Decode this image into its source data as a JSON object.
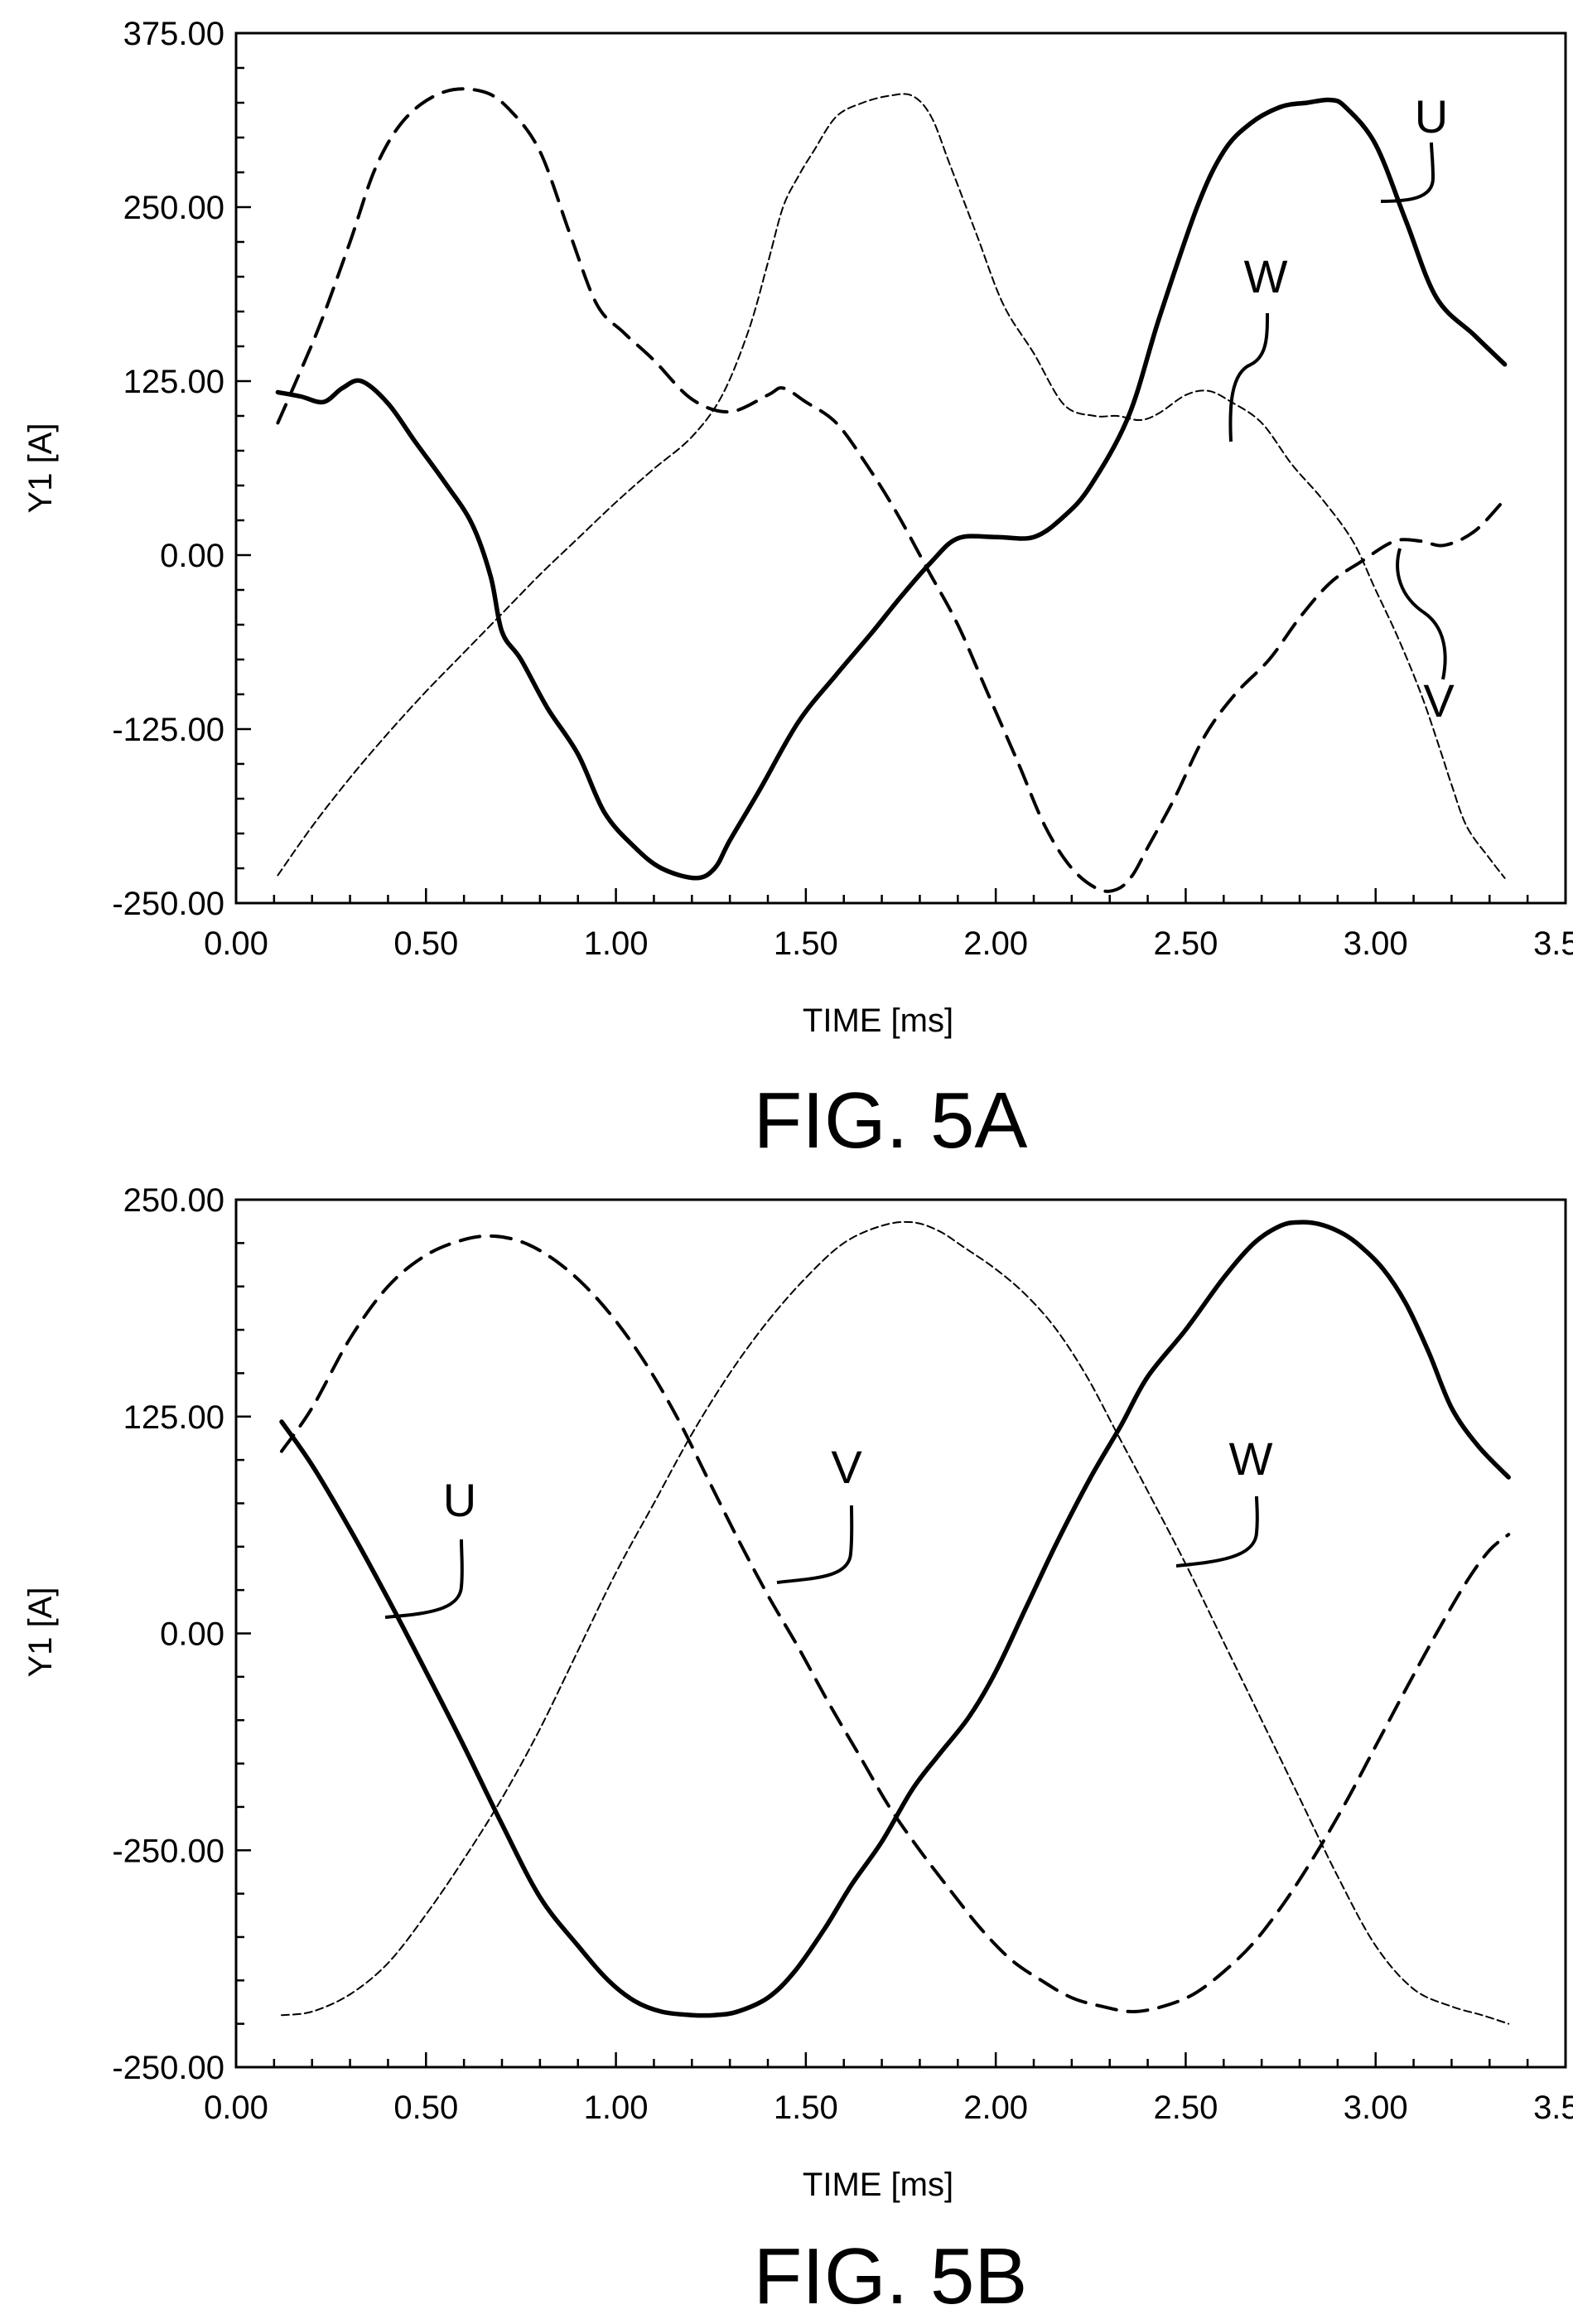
{
  "figures": [
    {
      "caption": "FIG. 5A",
      "chart_data": {
        "type": "line",
        "title": "",
        "xlabel": "TIME [ms]",
        "ylabel": "Y1 [A]",
        "xlim": [
          0.0,
          3.5
        ],
        "ylim": [
          -250.0,
          375.0
        ],
        "x_ticks": [
          "0.00",
          "0.50",
          "1.00",
          "1.50",
          "2.00",
          "2.50",
          "3.00",
          "3.50"
        ],
        "y_ticks": [
          "375.00",
          "250.00",
          "125.00",
          "0.00",
          "-125.00",
          "-250.00"
        ],
        "grid": false,
        "series": [
          {
            "name": "U",
            "style": "solid-thick",
            "x": [
              0.11,
              0.17,
              0.23,
              0.28,
              0.33,
              0.4,
              0.47,
              0.55,
              0.62,
              0.67,
              0.7,
              0.75,
              0.82,
              0.9,
              0.97,
              1.05,
              1.12,
              1.21,
              1.26,
              1.3,
              1.38,
              1.48,
              1.58,
              1.67,
              1.75,
              1.83,
              1.9,
              2.0,
              2.1,
              2.18,
              2.25,
              2.35,
              2.43,
              2.53,
              2.6,
              2.67,
              2.75,
              2.82,
              2.88,
              2.92,
              3.0,
              3.08,
              3.16,
              3.26,
              3.34
            ],
            "y": [
              117,
              114,
              110,
              120,
              125,
              109,
              82,
              52,
              23,
              -15,
              -55,
              -75,
              -110,
              -143,
              -185,
              -210,
              -225,
              -232,
              -225,
              -205,
              -168,
              -120,
              -86,
              -57,
              -30,
              -5,
              12,
              13,
              13,
              28,
              50,
              100,
              170,
              250,
              290,
              310,
              322,
              325,
              327,
              322,
              295,
              240,
              185,
              158,
              137
            ]
          },
          {
            "name": "V",
            "style": "dashed-thick",
            "x": [
              0.11,
              0.15,
              0.22,
              0.3,
              0.37,
              0.45,
              0.55,
              0.65,
              0.72,
              0.8,
              0.88,
              0.95,
              1.02,
              1.1,
              1.2,
              1.3,
              1.4,
              1.44,
              1.5,
              1.58,
              1.66,
              1.74,
              1.82,
              1.9,
              1.98,
              2.06,
              2.13,
              2.2,
              2.27,
              2.32,
              2.36,
              2.4,
              2.47,
              2.55,
              2.63,
              2.72,
              2.8,
              2.88,
              2.96,
              3.05,
              3.12,
              3.18,
              3.26,
              3.34
            ],
            "y": [
              95,
              120,
              165,
              225,
              280,
              315,
              333,
              333,
              320,
              290,
              230,
              180,
              160,
              140,
              112,
              103,
              115,
              120,
              110,
              95,
              65,
              30,
              -10,
              -50,
              -100,
              -150,
              -195,
              -225,
              -240,
              -240,
              -230,
              -210,
              -175,
              -130,
              -100,
              -75,
              -45,
              -20,
              -5,
              10,
              10,
              7,
              17,
              40
            ]
          },
          {
            "name": "W",
            "style": "dashed-thin",
            "x": [
              0.11,
              0.2,
              0.3,
              0.4,
              0.5,
              0.6,
              0.7,
              0.8,
              0.9,
              1.0,
              1.1,
              1.2,
              1.28,
              1.35,
              1.4,
              1.44,
              1.48,
              1.52,
              1.58,
              1.65,
              1.72,
              1.78,
              1.83,
              1.88,
              1.95,
              2.02,
              2.1,
              2.18,
              2.26,
              2.32,
              2.38,
              2.43,
              2.5,
              2.56,
              2.62,
              2.7,
              2.78,
              2.86,
              2.94,
              3.0,
              3.06,
              3.12,
              3.17,
              3.2,
              3.24,
              3.3,
              3.34
            ],
            "y": [
              -230,
              -195,
              -160,
              -128,
              -98,
              -70,
              -42,
              -14,
              12,
              38,
              62,
              85,
              115,
              162,
              210,
              250,
              272,
              290,
              315,
              325,
              330,
              330,
              315,
              280,
              230,
              180,
              145,
              108,
              100,
              100,
              97,
              102,
              115,
              118,
              110,
              95,
              65,
              40,
              10,
              -25,
              -60,
              -100,
              -140,
              -165,
              -195,
              -218,
              -232
            ]
          }
        ]
      }
    },
    {
      "caption": "FIG. 5B",
      "chart_data": {
        "type": "line",
        "title": "",
        "xlabel": "TIME [ms]",
        "ylabel": "Y1 [A]",
        "xlim": [
          0.0,
          3.5
        ],
        "ylim": [
          -250.0,
          250.0
        ],
        "x_ticks": [
          "0.00",
          "0.50",
          "1.00",
          "1.50",
          "2.00",
          "2.50",
          "3.00",
          "3.50"
        ],
        "y_ticks": [
          "250.00",
          "125.00",
          "0.00",
          "-250.00",
          "-250.00"
        ],
        "grid": false,
        "series": [
          {
            "name": "U",
            "style": "solid-thick",
            "x": [
              0.12,
              0.2,
              0.3,
              0.4,
              0.5,
              0.6,
              0.7,
              0.8,
              0.9,
              0.98,
              1.05,
              1.12,
              1.2,
              1.26,
              1.32,
              1.4,
              1.47,
              1.55,
              1.62,
              1.7,
              1.78,
              1.85,
              1.93,
              2.0,
              2.08,
              2.16,
              2.25,
              2.33,
              2.4,
              2.5,
              2.6,
              2.68,
              2.75,
              2.8,
              2.85,
              2.9,
              2.95,
              3.02,
              3.08,
              3.14,
              3.2,
              3.27,
              3.35
            ],
            "y": [
              122,
              97,
              60,
              20,
              -22,
              -65,
              -110,
              -152,
              -180,
              -200,
              -212,
              -218,
              -220,
              -220,
              -218,
              -210,
              -195,
              -170,
              -145,
              -120,
              -90,
              -70,
              -48,
              -22,
              15,
              52,
              90,
              120,
              148,
              175,
              205,
              225,
              235,
              237,
              236,
              232,
              225,
              210,
              190,
              162,
              130,
              108,
              90
            ]
          },
          {
            "name": "V",
            "style": "dashed-thick",
            "x": [
              0.12,
              0.2,
              0.3,
              0.4,
              0.5,
              0.6,
              0.68,
              0.76,
              0.84,
              0.92,
              1.0,
              1.08,
              1.16,
              1.24,
              1.32,
              1.4,
              1.48,
              1.56,
              1.64,
              1.72,
              1.8,
              1.88,
              1.96,
              2.04,
              2.12,
              2.2,
              2.28,
              2.36,
              2.44,
              2.52,
              2.6,
              2.68,
              2.76,
              2.84,
              2.92,
              3.0,
              3.08,
              3.16,
              3.24,
              3.3,
              3.35
            ],
            "y": [
              105,
              130,
              170,
              200,
              218,
              227,
              229,
              225,
              215,
              200,
              180,
              155,
              125,
              90,
              55,
              22,
              -8,
              -40,
              -70,
              -100,
              -125,
              -148,
              -170,
              -188,
              -200,
              -210,
              -215,
              -218,
              -215,
              -208,
              -195,
              -178,
              -155,
              -128,
              -98,
              -65,
              -32,
              0,
              30,
              48,
              57
            ]
          },
          {
            "name": "W",
            "style": "dashed-thin",
            "x": [
              0.12,
              0.2,
              0.3,
              0.4,
              0.5,
              0.6,
              0.7,
              0.8,
              0.9,
              1.0,
              1.1,
              1.2,
              1.3,
              1.4,
              1.5,
              1.6,
              1.7,
              1.78,
              1.85,
              1.92,
              2.0,
              2.08,
              2.16,
              2.24,
              2.32,
              2.4,
              2.5,
              2.6,
              2.7,
              2.8,
              2.9,
              3.0,
              3.1,
              3.2,
              3.28,
              3.35
            ],
            "y": [
              -220,
              -218,
              -208,
              -190,
              -162,
              -130,
              -95,
              -55,
              -10,
              35,
              75,
              115,
              150,
              180,
              205,
              225,
              235,
              237,
              232,
              222,
              210,
              195,
              175,
              148,
              115,
              82,
              40,
              -5,
              -50,
              -95,
              -140,
              -180,
              -205,
              -215,
              -220,
              -225
            ]
          }
        ]
      }
    }
  ],
  "series_labels": {
    "fig5a": {
      "U": "U",
      "W": "W",
      "V": "V"
    },
    "fig5b": {
      "U": "U",
      "V": "V",
      "W": "W"
    }
  }
}
